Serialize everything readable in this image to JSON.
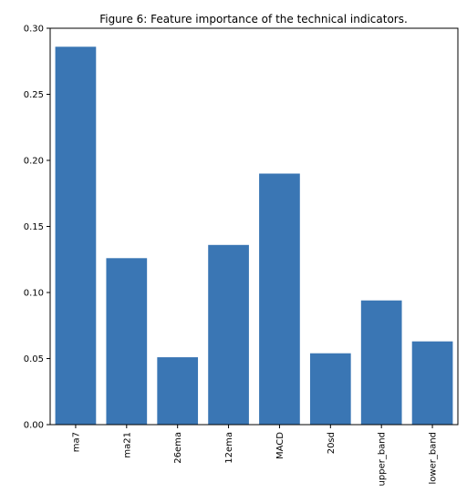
{
  "chart_data": {
    "type": "bar",
    "title": "Figure 6: Feature importance of the technical indicators.",
    "xlabel": "",
    "ylabel": "",
    "categories": [
      "ma7",
      "ma21",
      "26ema",
      "12ema",
      "MACD",
      "20sd",
      "upper_band",
      "lower_band"
    ],
    "values": [
      0.286,
      0.126,
      0.051,
      0.136,
      0.19,
      0.054,
      0.094,
      0.063
    ],
    "ylim": [
      0,
      0.3
    ],
    "yticks": [
      "0.00",
      "0.05",
      "0.10",
      "0.15",
      "0.20",
      "0.25",
      "0.30"
    ],
    "bar_color": "#3a76b4",
    "grid": false,
    "legend": "none"
  }
}
